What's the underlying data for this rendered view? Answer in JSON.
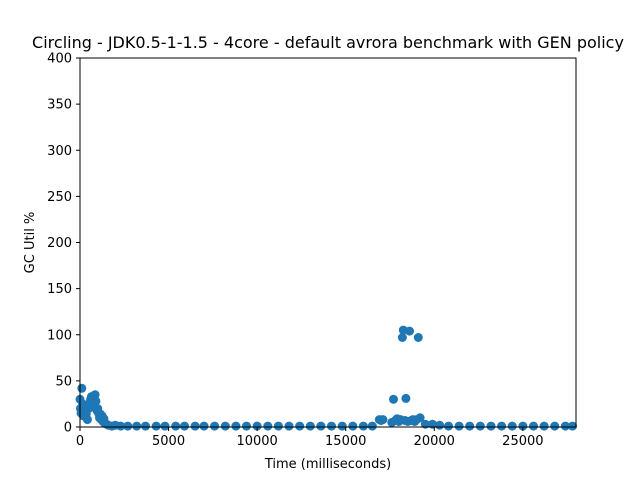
{
  "chart_data": {
    "type": "scatter",
    "title": "Circling - JDK0.5-1-1.5 - 4core -  default avrora benchmark with GEN policy",
    "xlabel": "Time (milliseconds)",
    "ylabel": "GC Util %",
    "xlim": [
      0,
      28000
    ],
    "ylim": [
      0,
      400
    ],
    "xticks": [
      "0",
      "5000",
      "10000",
      "15000",
      "20000",
      "25000"
    ],
    "yticks": [
      "0",
      "50",
      "100",
      "150",
      "200",
      "250",
      "300",
      "350",
      "400"
    ],
    "grid": false,
    "legend": "none",
    "marker_color": "#1f77b4",
    "x": [
      0,
      30,
      60,
      100,
      150,
      200,
      250,
      300,
      350,
      420,
      480,
      550,
      600,
      650,
      700,
      750,
      800,
      850,
      900,
      950,
      1000,
      1050,
      1100,
      1150,
      1200,
      1250,
      1300,
      1350,
      1400,
      1500,
      1600,
      1800,
      2000,
      2300,
      2700,
      3200,
      3700,
      4300,
      4800,
      5400,
      5900,
      6500,
      7000,
      7600,
      8200,
      8800,
      9400,
      10000,
      10600,
      11200,
      11800,
      12400,
      13000,
      13600,
      14200,
      14800,
      15400,
      16000,
      16500,
      16900,
      17000,
      17100,
      17600,
      17700,
      17800,
      17900,
      18000,
      18100,
      18200,
      18250,
      18350,
      18400,
      18500,
      18600,
      18700,
      18800,
      18900,
      19000,
      19100,
      19200,
      19500,
      19900,
      20300,
      20800,
      21400,
      22000,
      22600,
      23200,
      23800,
      24400,
      25000,
      25600,
      26200,
      26800,
      27400,
      27800
    ],
    "y": [
      30,
      20,
      15,
      42,
      25,
      12,
      18,
      22,
      14,
      8,
      20,
      26,
      30,
      33,
      28,
      22,
      32,
      35,
      28,
      18,
      20,
      15,
      10,
      14,
      8,
      12,
      6,
      9,
      4,
      3,
      2,
      1,
      2,
      1,
      1,
      1,
      1,
      1,
      1,
      1,
      1,
      1,
      1,
      1,
      1,
      1,
      1,
      1,
      1,
      1,
      1,
      1,
      1,
      1,
      1,
      1,
      1,
      1,
      1,
      8,
      7,
      8,
      5,
      30,
      7,
      9,
      6,
      8,
      97,
      105,
      7,
      31,
      6,
      104,
      7,
      8,
      6,
      8,
      97,
      10,
      3,
      3,
      2,
      1,
      1,
      1,
      1,
      1,
      1,
      1,
      1,
      1,
      1,
      1,
      1,
      1
    ]
  }
}
